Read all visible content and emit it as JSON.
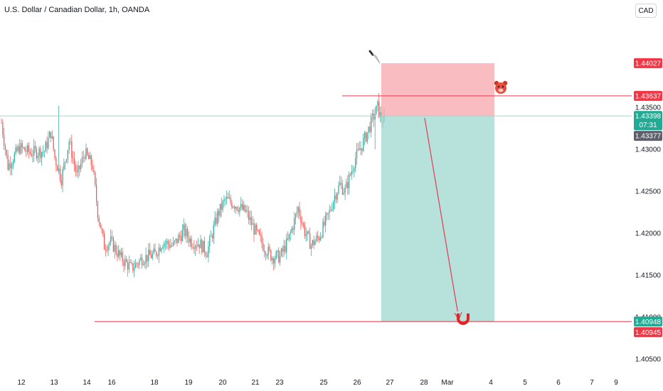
{
  "header": {
    "title": "U.S. Dollar / Canadian Dollar, 1h, OANDA",
    "currency_button": "CAD"
  },
  "colors": {
    "up": "#26a69a",
    "down": "#ef5350",
    "stop_zone": "#f7a1a6",
    "target_zone": "#9fd8d0",
    "red_line": "#e53950",
    "price_line": "#9ed7cf",
    "label_red": "#f23645",
    "label_teal": "#22ab94",
    "label_gray": "#5d606b"
  },
  "icons": {
    "bear": "bear-face-icon",
    "knife": "knife-icon",
    "magnet": "magnet-icon"
  },
  "chart_data": {
    "type": "candlestick",
    "symbol": "USDCAD",
    "interval": "1h",
    "ylim": [
      1.4012,
      1.4478
    ],
    "y_ticks": [
      1.405,
      1.41,
      1.415,
      1.42,
      1.425,
      1.43,
      1.435
    ],
    "x_tick_labels": [
      "12",
      "13",
      "14",
      "16",
      "18",
      "19",
      "20",
      "21",
      "23",
      "25",
      "26",
      "27",
      "28",
      "Mar",
      "4",
      "5",
      "6",
      "7",
      "9"
    ],
    "grid": false,
    "legend": "none",
    "price_labels": {
      "stop_price": "1.44027",
      "entry_price": "1.43637",
      "current_price": "1.43398",
      "countdown": "07:31",
      "bid_price": "1.43377",
      "target_price": "1.40948",
      "target_price_2": "1.40945"
    },
    "position": {
      "direction": "short",
      "stop": 1.44027,
      "entry": 1.4339,
      "target": 1.40948,
      "resistance_line": 1.43637
    },
    "path_keypoints": [
      [
        0,
        1.4332
      ],
      [
        5,
        1.428
      ],
      [
        14,
        1.4302
      ],
      [
        22,
        1.4296
      ],
      [
        33,
        1.4298
      ],
      [
        38,
        1.432
      ],
      [
        41,
        1.429
      ],
      [
        46,
        1.4265
      ],
      [
        52,
        1.431
      ],
      [
        58,
        1.4268
      ],
      [
        64,
        1.4296
      ],
      [
        70,
        1.428
      ],
      [
        74,
        1.4225
      ],
      [
        79,
        1.4185
      ],
      [
        84,
        1.419
      ],
      [
        92,
        1.417
      ],
      [
        100,
        1.4158
      ],
      [
        108,
        1.417
      ],
      [
        118,
        1.4175
      ],
      [
        124,
        1.419
      ],
      [
        132,
        1.4185
      ],
      [
        140,
        1.4203
      ],
      [
        146,
        1.419
      ],
      [
        152,
        1.4188
      ],
      [
        158,
        1.4178
      ],
      [
        166,
        1.4222
      ],
      [
        172,
        1.424
      ],
      [
        180,
        1.4234
      ],
      [
        188,
        1.4225
      ],
      [
        194,
        1.4205
      ],
      [
        202,
        1.4183
      ],
      [
        208,
        1.4172
      ],
      [
        214,
        1.4172
      ],
      [
        220,
        1.419
      ],
      [
        224,
        1.421
      ],
      [
        228,
        1.423
      ],
      [
        233,
        1.4202
      ],
      [
        238,
        1.4186
      ],
      [
        244,
        1.4196
      ],
      [
        248,
        1.421
      ],
      [
        252,
        1.4225
      ],
      [
        256,
        1.4245
      ],
      [
        260,
        1.4258
      ],
      [
        264,
        1.425
      ],
      [
        268,
        1.427
      ],
      [
        272,
        1.429
      ],
      [
        277,
        1.4305
      ],
      [
        281,
        1.432
      ],
      [
        285,
        1.4336
      ],
      [
        289,
        1.435
      ],
      [
        292,
        1.4335
      ],
      [
        294,
        1.4338
      ]
    ]
  }
}
